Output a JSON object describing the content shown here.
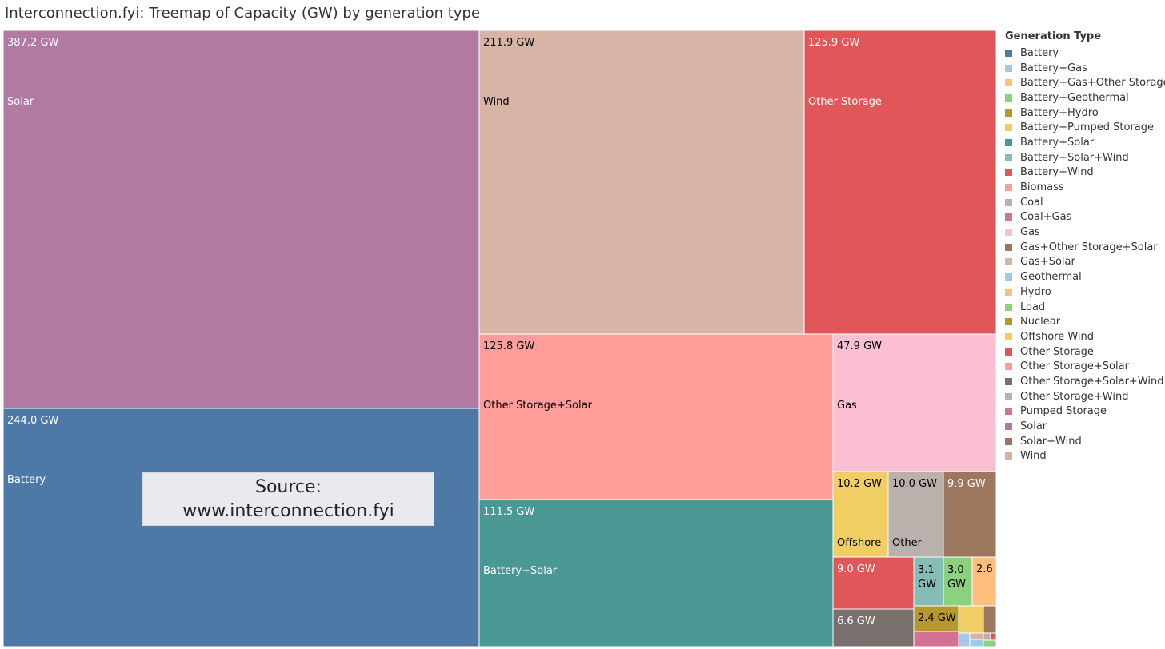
{
  "chart_data": {
    "type": "treemap",
    "title": "Interconnection.fyi: Treemap of Capacity (GW) by generation type",
    "unit": "GW",
    "legend_title": "Generation Type",
    "legend": [
      {
        "name": "Battery",
        "color": "#4e79a7"
      },
      {
        "name": "Battery+Gas",
        "color": "#a0cbe8"
      },
      {
        "name": "Battery+Gas+Other Storage",
        "color": "#ffbe7d"
      },
      {
        "name": "Battery+Geothermal",
        "color": "#8cd17d"
      },
      {
        "name": "Battery+Hydro",
        "color": "#b6992d"
      },
      {
        "name": "Battery+Pumped Storage",
        "color": "#f1ce63"
      },
      {
        "name": "Battery+Solar",
        "color": "#499894"
      },
      {
        "name": "Battery+Solar+Wind",
        "color": "#86bcb6"
      },
      {
        "name": "Battery+Wind",
        "color": "#e15759"
      },
      {
        "name": "Biomass",
        "color": "#ff9d9a"
      },
      {
        "name": "Coal",
        "color": "#bab0ac"
      },
      {
        "name": "Coal+Gas",
        "color": "#d37295"
      },
      {
        "name": "Gas",
        "color": "#fabfd2"
      },
      {
        "name": "Gas+Other Storage+Solar",
        "color": "#9d7660"
      },
      {
        "name": "Gas+Solar",
        "color": "#d7b5a6"
      },
      {
        "name": "Geothermal",
        "color": "#a0cbe8"
      },
      {
        "name": "Hydro",
        "color": "#ffbe7d"
      },
      {
        "name": "Load",
        "color": "#8cd17d"
      },
      {
        "name": "Nuclear",
        "color": "#b6992d"
      },
      {
        "name": "Offshore Wind",
        "color": "#f1ce63"
      },
      {
        "name": "Other Storage",
        "color": "#e15759"
      },
      {
        "name": "Other Storage+Solar",
        "color": "#ff9d9a"
      },
      {
        "name": "Other Storage+Solar+Wind",
        "color": "#79706e"
      },
      {
        "name": "Other Storage+Wind",
        "color": "#bab0ac"
      },
      {
        "name": "Pumped Storage",
        "color": "#d37295"
      },
      {
        "name": "Solar",
        "color": "#b07aa1"
      },
      {
        "name": "Solar+Wind",
        "color": "#9d7660"
      },
      {
        "name": "Wind",
        "color": "#d7b5a6"
      }
    ],
    "tiles": [
      {
        "name": "Solar",
        "value": 387.2,
        "value_label": "387.2 GW",
        "name_label": "Solar",
        "color": "#b07aa1",
        "text": "#ffffff"
      },
      {
        "name": "Battery",
        "value": 244.0,
        "value_label": "244.0 GW",
        "name_label": "Battery",
        "color": "#4e79a7",
        "text": "#ffffff"
      },
      {
        "name": "Wind",
        "value": 211.9,
        "value_label": "211.9 GW",
        "name_label": "Wind",
        "color": "#d7b5a6",
        "text": "#000000"
      },
      {
        "name": "Other Storage",
        "value": 125.9,
        "value_label": "125.9 GW",
        "name_label": "Other Storage",
        "color": "#e15759",
        "text": "#ffffff"
      },
      {
        "name": "Other Storage+Solar",
        "value": 125.8,
        "value_label": "125.8 GW",
        "name_label": "Other Storage+Solar",
        "color": "#ff9d9a",
        "text": "#000000"
      },
      {
        "name": "Gas",
        "value": 47.9,
        "value_label": "47.9 GW",
        "name_label": "Gas",
        "color": "#fabfd2",
        "text": "#000000"
      },
      {
        "name": "Battery+Solar",
        "value": 111.5,
        "value_label": "111.5 GW",
        "name_label": "Battery+Solar",
        "color": "#499894",
        "text": "#ffffff"
      },
      {
        "name": "Offshore Wind",
        "value": 10.2,
        "value_label": "10.2 GW",
        "name_label": "Offshore",
        "color": "#f1ce63",
        "text": "#000000"
      },
      {
        "name": "Other Storage+Wind",
        "value": 10.0,
        "value_label": "10.0 GW",
        "name_label": "Other",
        "color": "#bab0ac",
        "text": "#000000"
      },
      {
        "name": "Gas+Other Storage+Solar",
        "value": 9.9,
        "value_label": "9.9 GW",
        "name_label": "",
        "color": "#9d7660",
        "text": "#ffffff"
      },
      {
        "name": "Battery+Wind",
        "value": 9.0,
        "value_label": "9.0 GW",
        "name_label": "",
        "color": "#e15759",
        "text": "#ffffff"
      },
      {
        "name": "Battery+Solar+Wind",
        "value": 3.1,
        "value_label": "3.1 GW",
        "name_label": "",
        "color": "#86bcb6",
        "text": "#000000"
      },
      {
        "name": "Load",
        "value": 3.0,
        "value_label": "3.0 GW",
        "name_label": "",
        "color": "#8cd17d",
        "text": "#000000"
      },
      {
        "name": "Hydro",
        "value": 2.6,
        "value_label": "2.6",
        "name_label": "",
        "color": "#ffbe7d",
        "text": "#000000"
      },
      {
        "name": "Other Storage+Solar+Wind",
        "value": 6.6,
        "value_label": "6.6 GW",
        "name_label": "",
        "color": "#79706e",
        "text": "#ffffff"
      },
      {
        "name": "Nuclear",
        "value": 2.4,
        "value_label": "2.4 GW",
        "name_label": "",
        "color": "#b6992d",
        "text": "#000000"
      },
      {
        "name": "Battery+Pumped Storage",
        "value": null,
        "value_label": "",
        "name_label": "",
        "color": "#f1ce63",
        "text": "#000000"
      },
      {
        "name": "Solar+Wind",
        "value": null,
        "value_label": "",
        "name_label": "",
        "color": "#9d7660",
        "text": "#ffffff"
      },
      {
        "name": "Pumped Storage",
        "value": null,
        "value_label": "",
        "name_label": "",
        "color": "#d37295",
        "text": "#ffffff"
      },
      {
        "name": "Geothermal",
        "value": null,
        "value_label": "",
        "name_label": "",
        "color": "#a0cbe8",
        "text": "#000000"
      },
      {
        "name": "Gas+Solar",
        "value": null,
        "value_label": "",
        "name_label": "",
        "color": "#d7b5a6",
        "text": "#000000"
      },
      {
        "name": "Battery+Gas",
        "value": null,
        "value_label": "",
        "name_label": "",
        "color": "#a0cbe8",
        "text": "#000000"
      },
      {
        "name": "Coal",
        "value": null,
        "value_label": "",
        "name_label": "",
        "color": "#bab0ac",
        "text": "#000000"
      },
      {
        "name": "Battery+Wind (small)",
        "value": null,
        "value_label": "",
        "name_label": "",
        "color": "#e15759",
        "text": "#000000"
      },
      {
        "name": "Battery+Geothermal",
        "value": null,
        "value_label": "",
        "name_label": "",
        "color": "#8cd17d",
        "text": "#000000"
      }
    ]
  },
  "source_box": {
    "line1": "Source:",
    "line2": "www.interconnection.fyi"
  }
}
